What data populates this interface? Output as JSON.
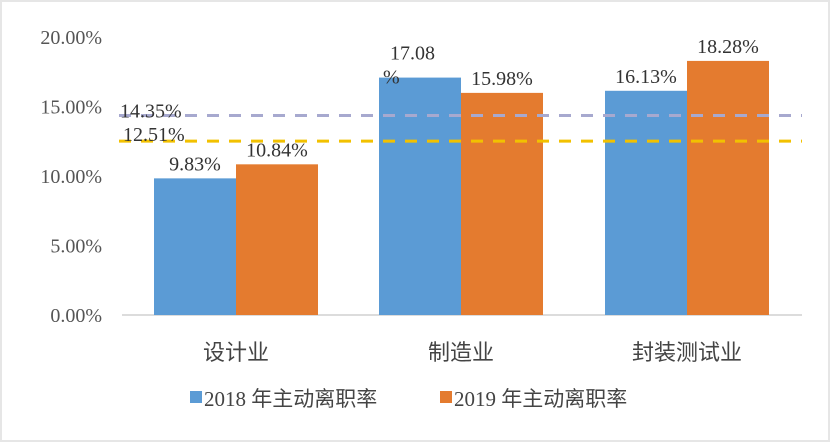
{
  "chart_data": {
    "type": "bar",
    "categories": [
      "设计业",
      "制造业",
      "封装测试业"
    ],
    "series": [
      {
        "name": "2018 年主动离职率",
        "values": [
          9.83,
          17.08,
          16.13
        ],
        "labels": [
          "9.83%",
          "17.08%",
          "16.13%"
        ],
        "color": "#5b9bd5"
      },
      {
        "name": "2019 年主动离职率",
        "values": [
          10.84,
          15.98,
          18.28
        ],
        "labels": [
          "10.84%",
          "15.98%",
          "18.28%"
        ],
        "color": "#e47b2f"
      }
    ],
    "reference_lines": [
      {
        "value": 14.35,
        "label": "14.35%",
        "color": "#a7a9cf",
        "style": "dashed"
      },
      {
        "value": 12.51,
        "label": "12.51%",
        "color": "#f2c100",
        "style": "dashed"
      }
    ],
    "yticks": [
      "0.00%",
      "5.00%",
      "10.00%",
      "15.00%",
      "20.00%"
    ],
    "ylim": [
      0,
      20
    ],
    "grid": false,
    "legend": "bottom",
    "title": "",
    "xlabel": "",
    "ylabel": ""
  }
}
